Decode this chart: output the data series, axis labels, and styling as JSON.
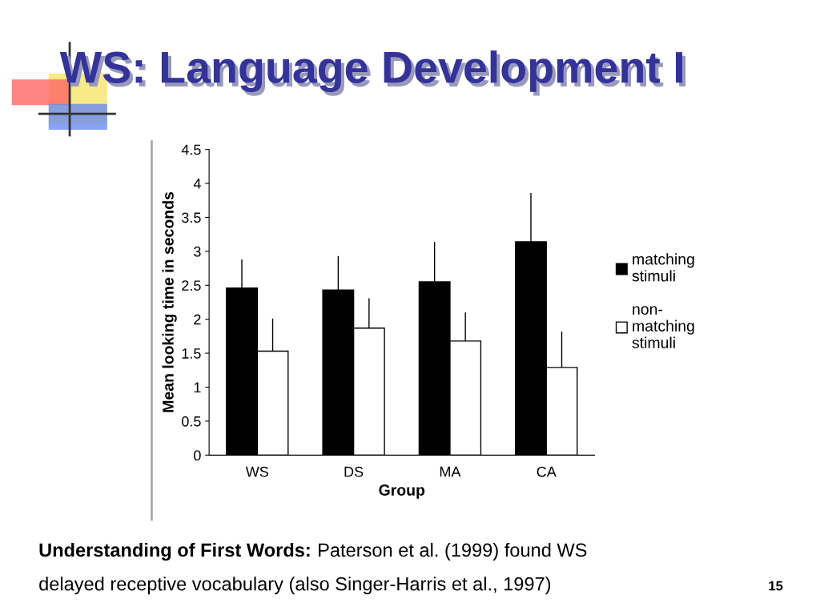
{
  "chart_data": {
    "type": "bar",
    "title": "WS: Language Development I",
    "xlabel": "Group",
    "ylabel": "Mean looking time in seconds",
    "categories": [
      "WS",
      "DS",
      "MA",
      "CA"
    ],
    "series": [
      {
        "name": "matching stimuli",
        "color": "#000000",
        "values": [
          2.46,
          2.43,
          2.55,
          3.14
        ],
        "errors": [
          [
            2.46,
            2.88
          ],
          [
            2.43,
            2.93
          ],
          [
            2.55,
            3.14
          ],
          [
            3.14,
            3.86
          ]
        ]
      },
      {
        "name": "non-matching stimuli",
        "color": "#ffffff",
        "values": [
          1.53,
          1.87,
          1.68,
          1.29
        ],
        "errors": [
          [
            1.53,
            2.01
          ],
          [
            1.87,
            2.31
          ],
          [
            1.68,
            2.1
          ],
          [
            1.29,
            1.82
          ]
        ]
      }
    ],
    "ylim": [
      0,
      4.5
    ],
    "yticks": [
      0,
      0.5,
      1,
      1.5,
      2,
      2.5,
      3,
      3.5,
      4,
      4.5
    ],
    "grid": false,
    "legend": "right",
    "annotations": [
      "Understanding of First Words:",
      "Paterson et al. (1999) found WS",
      "delayed receptive vocabulary (also Singer-Harris et al., 1997)",
      "15"
    ]
  }
}
